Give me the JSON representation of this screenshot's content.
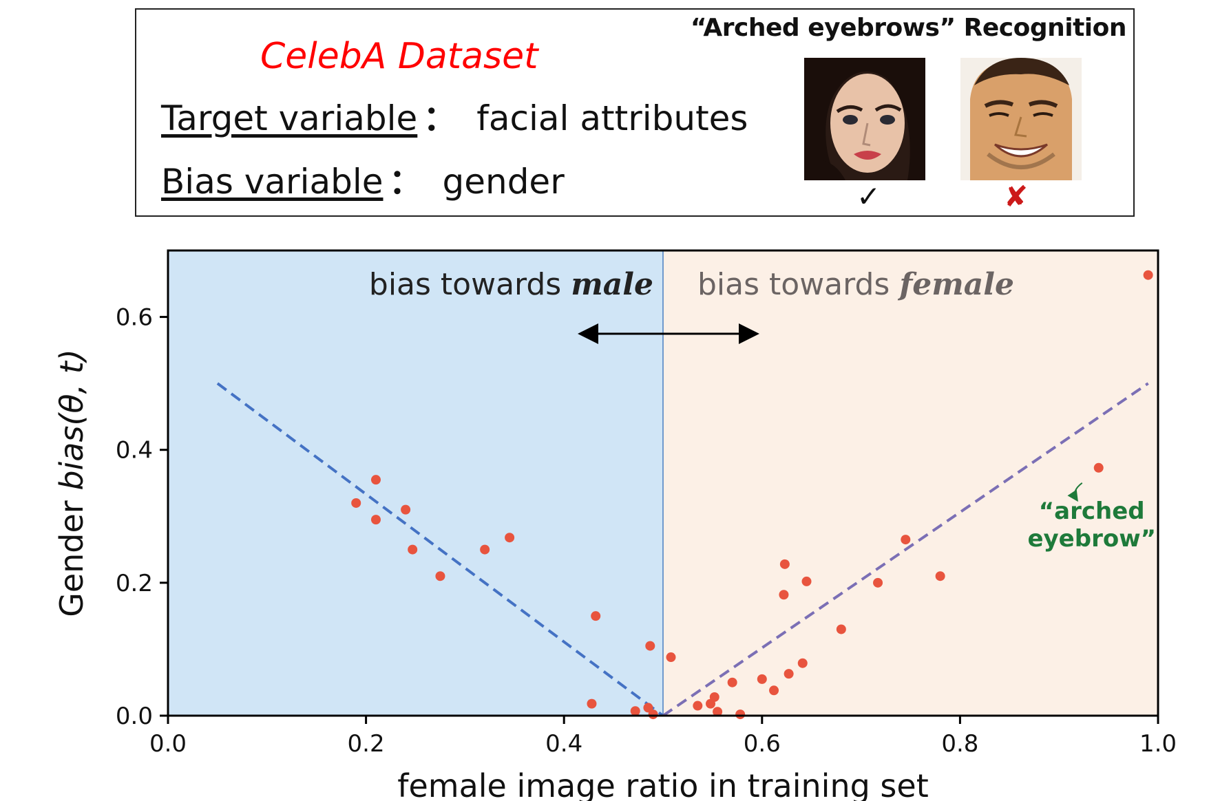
{
  "info": {
    "dataset_title": "CelebA Dataset",
    "target_label": "Target variable",
    "target_value": "facial attributes",
    "bias_label": "Bias variable",
    "bias_value": "gender",
    "separator": "：",
    "recognition_title": "“Arched eyebrows” Recognition",
    "check_mark": "✓",
    "cross_mark": "✘",
    "face_icons": [
      "female-face-icon",
      "male-face-icon"
    ]
  },
  "chart_data": {
    "type": "scatter",
    "xlabel": "female image ratio in training set",
    "ylabel_prefix": "Gender ",
    "ylabel_func": "bias",
    "ylabel_args": "(θ, t)",
    "xlim": [
      0.0,
      1.0
    ],
    "ylim": [
      0.0,
      0.7
    ],
    "xticks": [
      "0.0",
      "0.2",
      "0.4",
      "0.6",
      "0.8",
      "1.0"
    ],
    "yticks": [
      "0.0",
      "0.2",
      "0.4",
      "0.6"
    ],
    "regions": [
      {
        "name": "bias towards male",
        "x": [
          0.0,
          0.5
        ],
        "color": "#d0e5f6"
      },
      {
        "name": "bias towards female",
        "x": [
          0.5,
          1.0
        ],
        "color": "#fcf0e6"
      }
    ],
    "region_labels": {
      "male_prefix": "bias towards ",
      "male_word": "male",
      "female_prefix": "bias towards ",
      "female_word": "female"
    },
    "lines": [
      {
        "name": "male-trend",
        "x": [
          0.05,
          0.5
        ],
        "y": [
          0.5,
          0.0
        ],
        "color": "#4472c4",
        "style": "dashed"
      },
      {
        "name": "female-trend",
        "x": [
          0.5,
          0.99
        ],
        "y": [
          0.0,
          0.5
        ],
        "color": "#7b6fb5",
        "style": "dashed"
      }
    ],
    "points": [
      {
        "x": 0.19,
        "y": 0.32
      },
      {
        "x": 0.21,
        "y": 0.355
      },
      {
        "x": 0.21,
        "y": 0.295
      },
      {
        "x": 0.24,
        "y": 0.31
      },
      {
        "x": 0.247,
        "y": 0.25
      },
      {
        "x": 0.275,
        "y": 0.21
      },
      {
        "x": 0.32,
        "y": 0.25
      },
      {
        "x": 0.345,
        "y": 0.268
      },
      {
        "x": 0.432,
        "y": 0.15
      },
      {
        "x": 0.428,
        "y": 0.018
      },
      {
        "x": 0.472,
        "y": 0.007
      },
      {
        "x": 0.485,
        "y": 0.012
      },
      {
        "x": 0.487,
        "y": 0.105
      },
      {
        "x": 0.49,
        "y": 0.002
      },
      {
        "x": 0.508,
        "y": 0.088
      },
      {
        "x": 0.535,
        "y": 0.015
      },
      {
        "x": 0.548,
        "y": 0.018
      },
      {
        "x": 0.552,
        "y": 0.028
      },
      {
        "x": 0.555,
        "y": 0.006
      },
      {
        "x": 0.57,
        "y": 0.05
      },
      {
        "x": 0.578,
        "y": 0.002
      },
      {
        "x": 0.6,
        "y": 0.055
      },
      {
        "x": 0.612,
        "y": 0.038
      },
      {
        "x": 0.622,
        "y": 0.182
      },
      {
        "x": 0.623,
        "y": 0.228
      },
      {
        "x": 0.627,
        "y": 0.063
      },
      {
        "x": 0.641,
        "y": 0.079
      },
      {
        "x": 0.645,
        "y": 0.202
      },
      {
        "x": 0.68,
        "y": 0.13
      },
      {
        "x": 0.717,
        "y": 0.2
      },
      {
        "x": 0.745,
        "y": 0.265
      },
      {
        "x": 0.78,
        "y": 0.21
      },
      {
        "x": 0.94,
        "y": 0.373
      },
      {
        "x": 0.99,
        "y": 0.663
      }
    ],
    "point_color": "#e8543e",
    "annotation": {
      "line1": "“arched",
      "line2": "eyebrow”",
      "x": 0.94,
      "y": 0.373,
      "color": "#1e7a3a"
    }
  }
}
